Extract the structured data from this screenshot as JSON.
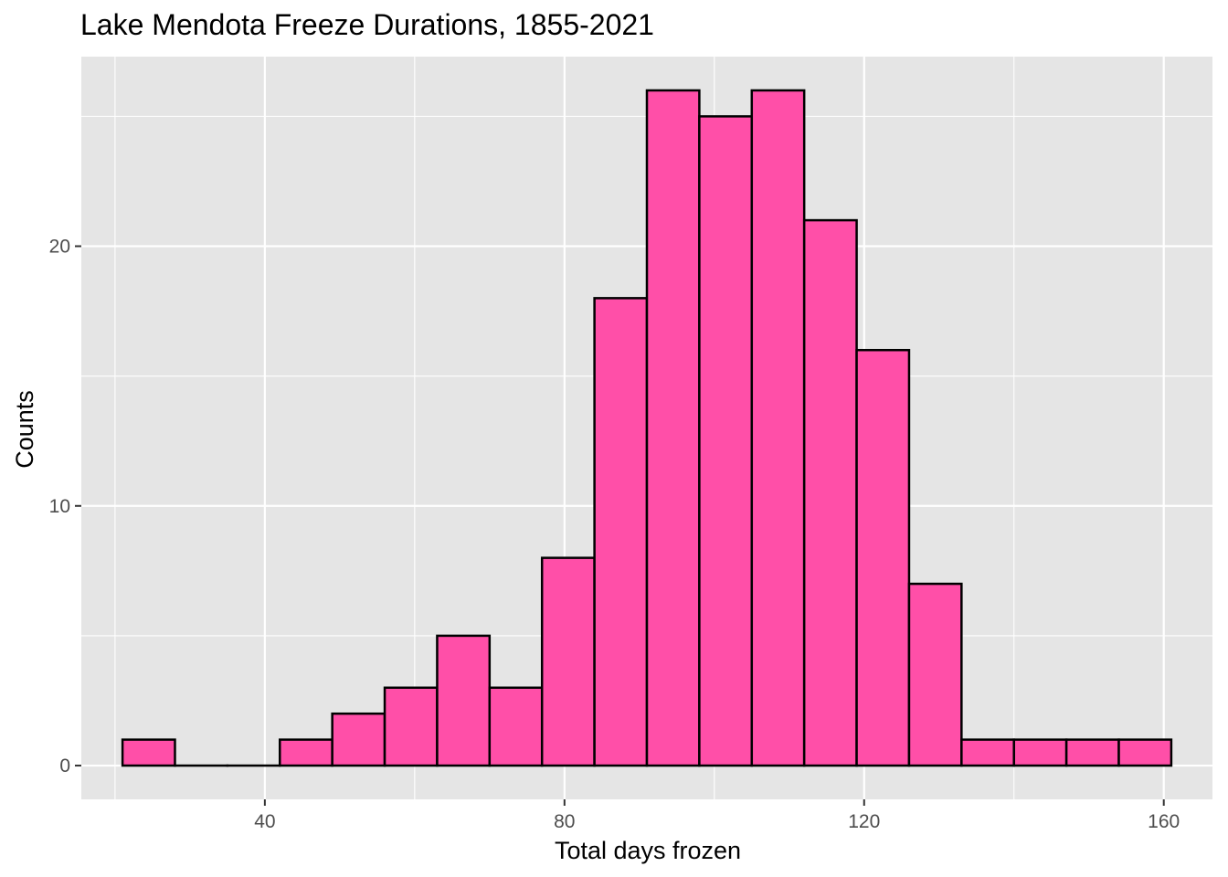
{
  "chart_data": {
    "type": "bar",
    "title": "Lake Mendota Freeze Durations, 1855-2021",
    "xlabel": "Total days frozen",
    "ylabel": "Counts",
    "bin_edges": [
      21,
      28,
      35,
      42,
      49,
      56,
      63,
      70,
      77,
      84,
      91,
      98,
      105,
      112,
      119,
      126,
      133,
      140,
      147,
      154,
      161
    ],
    "values": [
      1,
      0,
      0,
      1,
      2,
      3,
      5,
      3,
      8,
      18,
      26,
      25,
      26,
      21,
      16,
      7,
      1,
      1,
      1,
      1
    ],
    "xlim": [
      15.5,
      166.5
    ],
    "ylim": [
      -1.3,
      27.3
    ],
    "x_ticks": [
      40,
      80,
      120,
      160
    ],
    "y_ticks": [
      0,
      10,
      20
    ],
    "x_ticks_labels": [
      "40",
      "80",
      "120",
      "160"
    ],
    "y_ticks_labels": [
      "0",
      "10",
      "20"
    ],
    "grid": true,
    "bar_fill": "#ff4fa8",
    "bar_stroke": "#000000",
    "panel_background": "#e5e5e5",
    "grid_color": "#ffffff"
  }
}
